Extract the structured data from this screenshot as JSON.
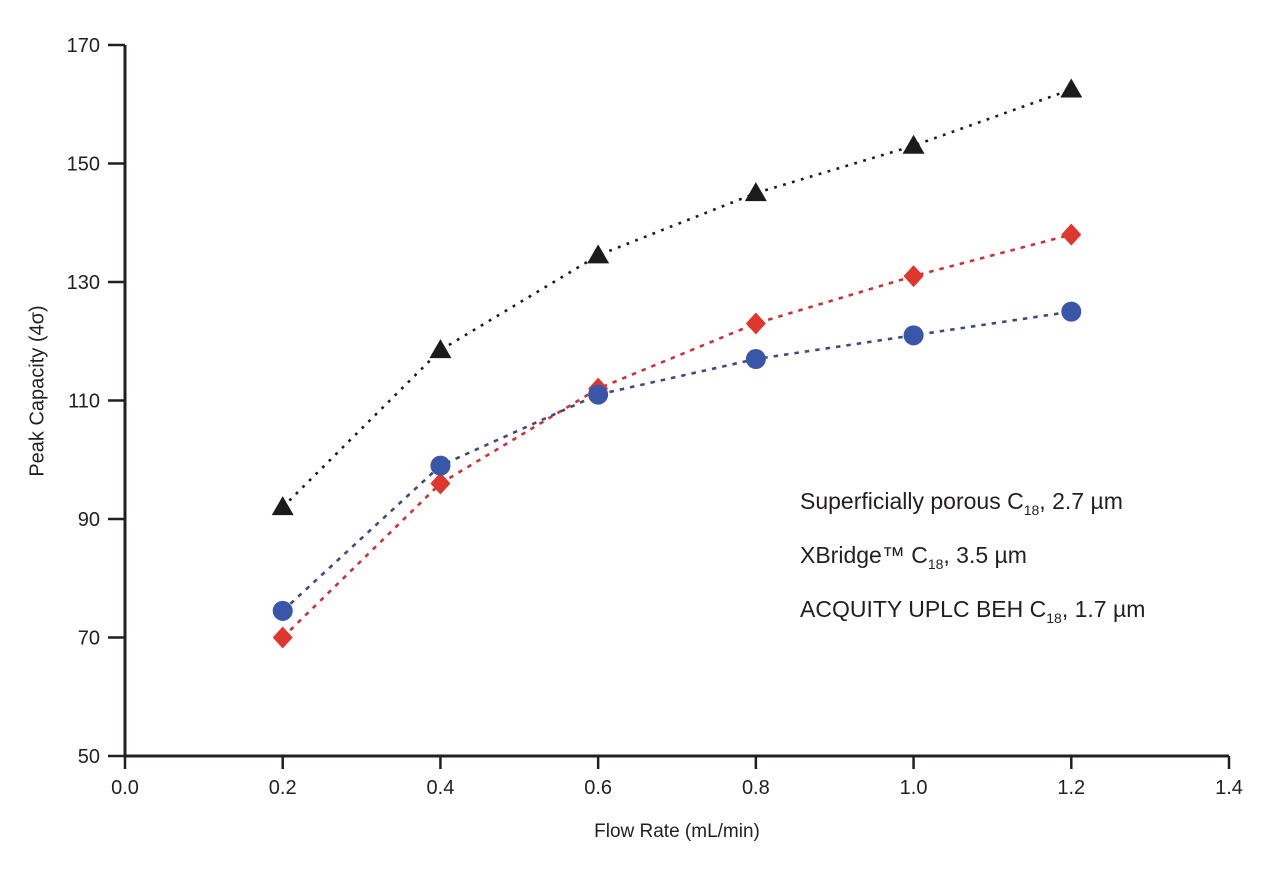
{
  "chart_data": {
    "type": "line",
    "title": "",
    "xlabel": "Flow Rate (mL/min)",
    "ylabel": "Peak Capacity (4σ)",
    "xlim": [
      0.0,
      1.4
    ],
    "ylim": [
      50,
      170
    ],
    "x_tick_labels": [
      "0.0",
      "0.2",
      "0.4",
      "0.6",
      "0.8",
      "1.0",
      "1.2",
      "1.4"
    ],
    "y_tick_labels": [
      "50",
      "70",
      "90",
      "110",
      "130",
      "150",
      "170"
    ],
    "grid": false,
    "line_style": "dashed",
    "legend_position": "inside-right",
    "x": [
      0.2,
      0.4,
      0.6,
      0.8,
      1.0,
      1.2
    ],
    "series": [
      {
        "name": "Superficially porous C18, 2.7 µm",
        "marker": "triangle",
        "marker_color": "#1b1b1b",
        "line_color": "#1b1b1b",
        "dash": "2.8 6.5",
        "values": [
          92,
          118.5,
          134.5,
          145,
          153,
          162.5
        ]
      },
      {
        "name": "XBridge™ C18, 3.5 µm",
        "marker": "diamond",
        "marker_color": "#df372d",
        "line_color": "#cf3038",
        "dash": "4.5 6",
        "values": [
          70,
          96,
          112,
          123,
          131,
          138
        ]
      },
      {
        "name": "ACQUITY UPLC BEH C18, 1.7 µm",
        "marker": "circle",
        "marker_color": "#3a56a8",
        "line_color": "#3d4b7e",
        "dash": "4.5 6",
        "values": [
          74.5,
          99,
          111,
          117,
          121,
          125
        ]
      }
    ],
    "legend_entries": [
      {
        "pre": "Superficially porous C",
        "sub": "18",
        "post": ", 2.7 µm"
      },
      {
        "pre": "XBridge™ C",
        "sub": "18",
        "post": ", 3.5 µm"
      },
      {
        "pre": "ACQUITY UPLC BEH C",
        "sub": "18",
        "post": ", 1.7 µm"
      }
    ],
    "colors": {
      "axis": "#231f20",
      "background": "#ffffff"
    }
  }
}
